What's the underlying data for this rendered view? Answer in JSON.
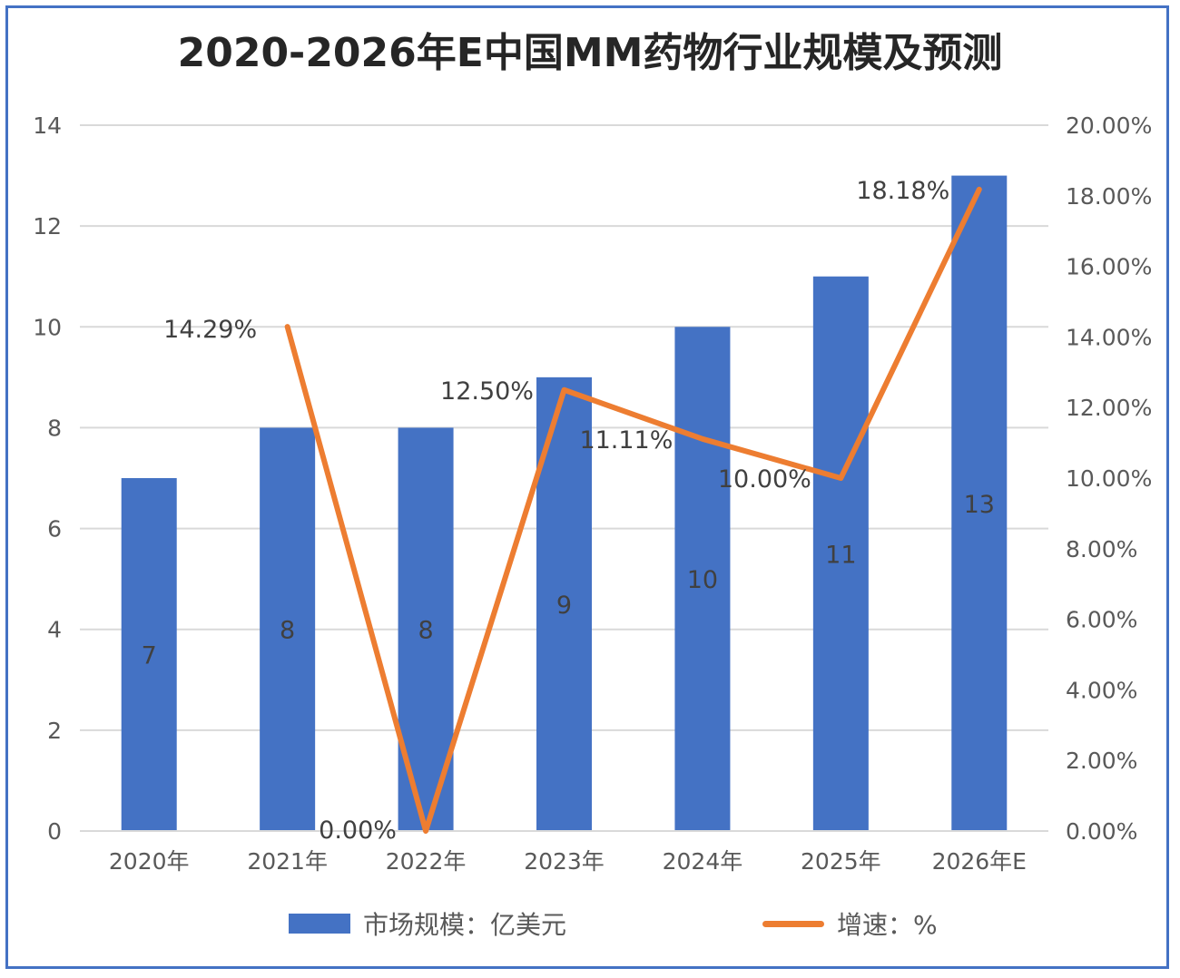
{
  "title": "2020-2026年E中国MM药物行业规模及预测",
  "colors": {
    "bar": "#4472c4",
    "line": "#ed7d31",
    "grid": "#d9d9d9",
    "frame": "#4472c4"
  },
  "legend": {
    "bar_label": "市场规模：亿美元",
    "line_label": "增速：%"
  },
  "chart_data": {
    "type": "bar",
    "categories": [
      "2020年",
      "2021年",
      "2022年",
      "2023年",
      "2024年",
      "2025年",
      "2026年E"
    ],
    "series": [
      {
        "name": "市场规模：亿美元",
        "type": "bar",
        "axis": "left",
        "values": [
          7,
          8,
          8,
          9,
          10,
          11,
          13
        ],
        "labels": [
          "7",
          "8",
          "8",
          "9",
          "10",
          "11",
          "13"
        ]
      },
      {
        "name": "增速：%",
        "type": "line",
        "axis": "right",
        "values": [
          null,
          14.29,
          0.0,
          12.5,
          11.11,
          10.0,
          18.18
        ],
        "labels": [
          "",
          "14.29%",
          "0.00%",
          "12.50%",
          "11.11%",
          "10.00%",
          "18.18%"
        ]
      }
    ],
    "y_left": {
      "min": 0,
      "max": 14,
      "ticks": [
        "0",
        "2",
        "4",
        "6",
        "8",
        "10",
        "12",
        "14"
      ]
    },
    "y_right": {
      "min": 0,
      "max": 20,
      "ticks": [
        "0.00%",
        "2.00%",
        "4.00%",
        "6.00%",
        "8.00%",
        "10.00%",
        "12.00%",
        "14.00%",
        "16.00%",
        "18.00%",
        "20.00%"
      ]
    },
    "grid": true,
    "legend_position": "bottom"
  }
}
